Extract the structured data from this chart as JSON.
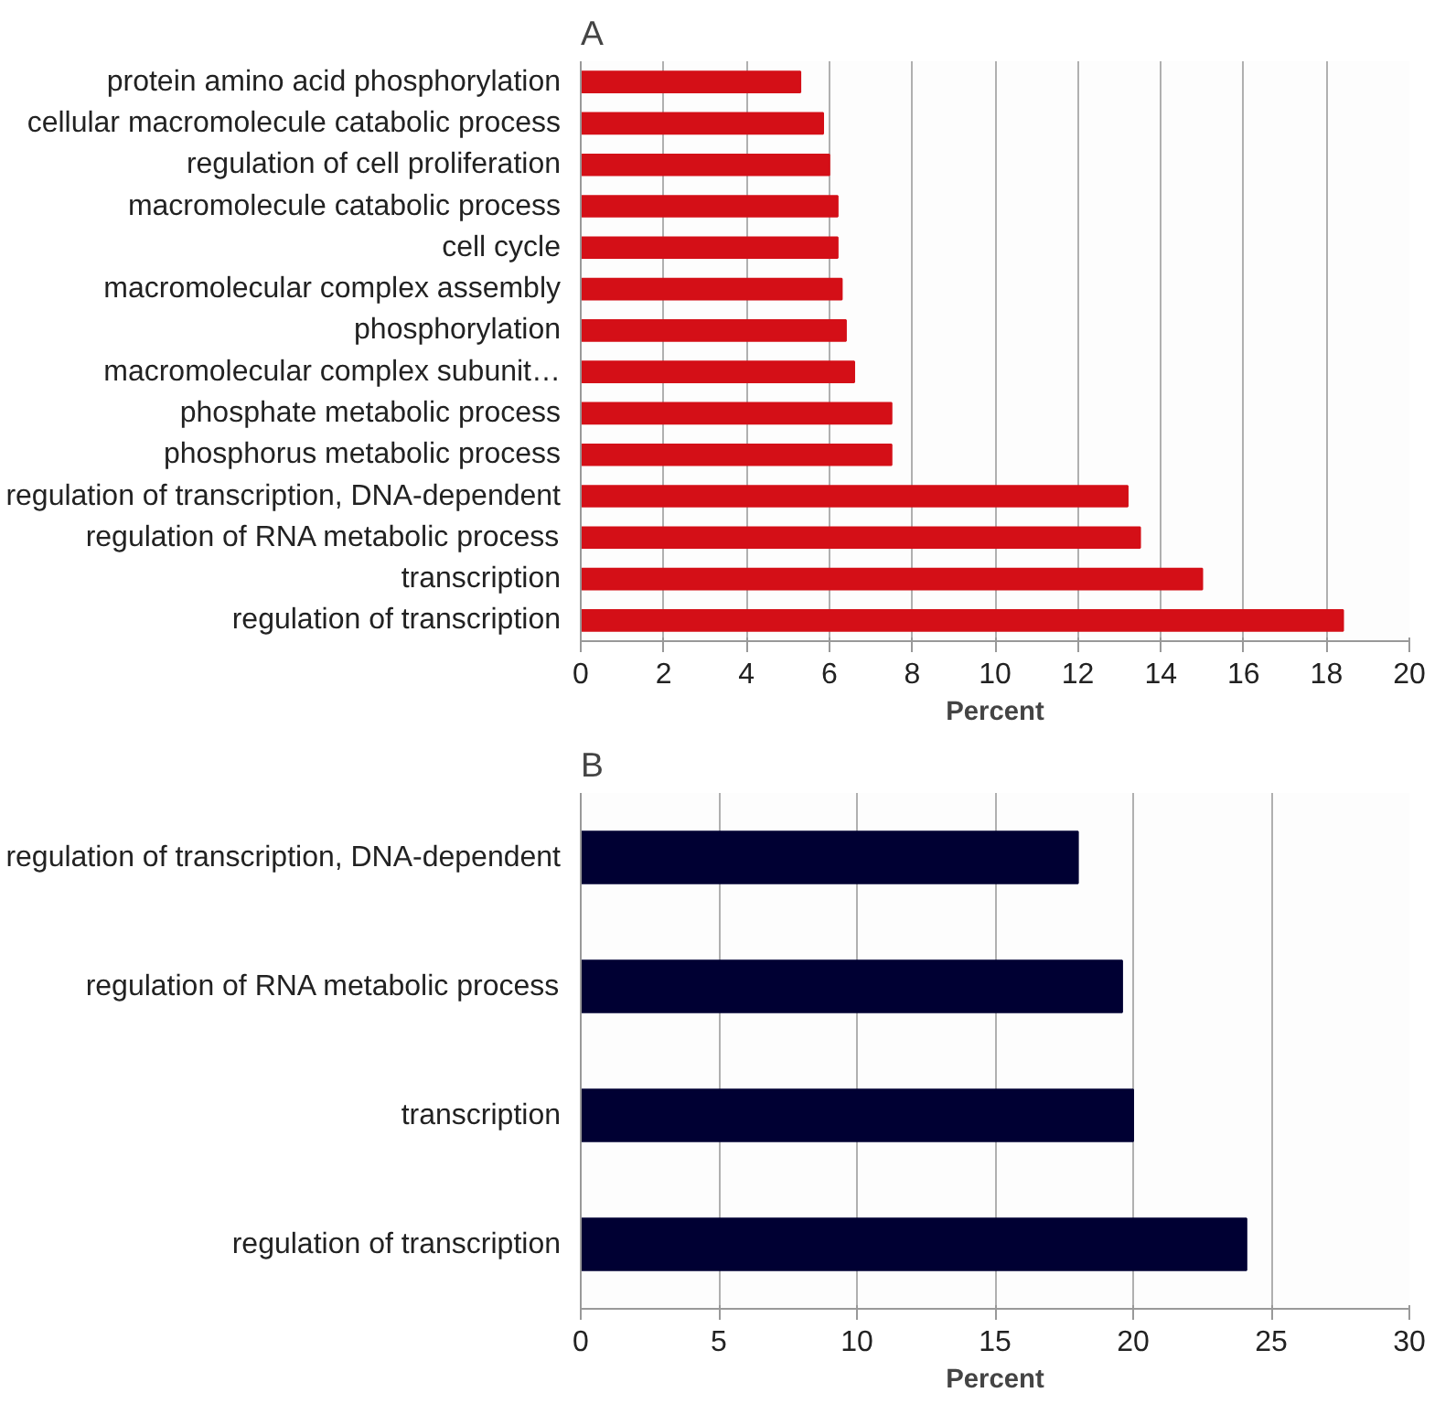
{
  "chart_data": [
    {
      "type": "bar",
      "title": "A",
      "orientation": "horizontal",
      "categories": [
        "protein amino acid phosphorylation",
        "cellular macromolecule catabolic process",
        "regulation of cell proliferation",
        "macromolecule catabolic process",
        "cell cycle",
        "macromolecular complex assembly",
        "phosphorylation",
        "macromolecular complex subunit…",
        "phosphate metabolic process",
        "phosphorus metabolic process",
        "regulation of transcription, DNA-dependent",
        "regulation of RNA metabolic process",
        "transcription",
        "regulation of transcription"
      ],
      "values": [
        5.3,
        5.85,
        6.0,
        6.2,
        6.2,
        6.3,
        6.4,
        6.6,
        7.5,
        7.5,
        13.2,
        13.5,
        15.0,
        18.4
      ],
      "color": "#d40f17",
      "xlabel": "Percent",
      "xlim": [
        0,
        20
      ],
      "xticks": [
        0,
        2,
        4,
        6,
        8,
        10,
        12,
        14,
        16,
        18,
        20
      ],
      "grid": "x"
    },
    {
      "type": "bar",
      "title": "B",
      "orientation": "horizontal",
      "categories": [
        "regulation of transcription, DNA-dependent",
        "regulation of RNA metabolic process",
        "transcription",
        "regulation of transcription"
      ],
      "values": [
        18.0,
        19.6,
        20.0,
        24.1
      ],
      "color": "#000033",
      "xlabel": "Percent",
      "xlim": [
        0,
        30
      ],
      "xticks": [
        0,
        5,
        10,
        15,
        20,
        25,
        30
      ],
      "grid": "x"
    }
  ]
}
